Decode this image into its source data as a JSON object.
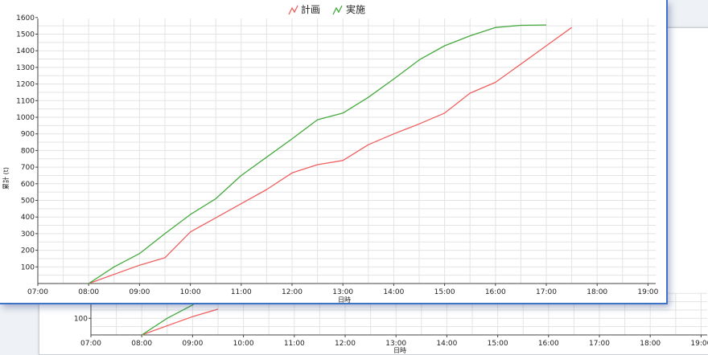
{
  "colors": {
    "plan": "#f06060",
    "actual": "#44aa3d",
    "grid": "#e3e3e3",
    "axis": "#444444",
    "window_border": "#3f72c9"
  },
  "chart_data": [
    {
      "type": "line",
      "legend": {
        "items": [
          "計画",
          "実施"
        ],
        "placement": "top-center"
      },
      "xlabel": "日時",
      "ylabel": "累計 (t)",
      "x_ticks": [
        "07:00",
        "08:00",
        "09:00",
        "10:00",
        "11:00",
        "12:00",
        "13:00",
        "14:00",
        "15:00",
        "16:00",
        "17:00",
        "18:00",
        "19:00"
      ],
      "y_ticks": [
        100,
        200,
        300,
        400,
        500,
        600,
        700,
        800,
        900,
        1000,
        1100,
        1200,
        1300,
        1400,
        1500,
        1600
      ],
      "xlim": [
        7,
        19.2
      ],
      "ylim": [
        0,
        1600
      ],
      "grid": true,
      "series": [
        {
          "name": "計画",
          "color": "#f06060",
          "x": [
            8.0,
            9.0,
            9.5,
            10.0,
            10.5,
            11.0,
            11.5,
            12.0,
            12.5,
            13.0,
            13.5,
            14.0,
            14.5,
            15.0,
            15.5,
            16.0,
            16.5,
            17.0,
            17.5
          ],
          "y": [
            0,
            110,
            155,
            310,
            395,
            480,
            565,
            665,
            715,
            740,
            835,
            900,
            960,
            1025,
            1145,
            1210,
            1320,
            1430,
            1540
          ]
        },
        {
          "name": "実施",
          "color": "#44aa3d",
          "x": [
            8.0,
            8.5,
            9.0,
            9.5,
            10.0,
            10.5,
            11.0,
            11.5,
            12.0,
            12.5,
            13.0,
            13.5,
            14.0,
            14.5,
            15.0,
            15.5,
            16.0,
            16.5,
            17.0
          ],
          "y": [
            0,
            100,
            180,
            300,
            415,
            510,
            650,
            760,
            870,
            985,
            1025,
            1120,
            1230,
            1345,
            1430,
            1490,
            1540,
            1553,
            1555
          ]
        }
      ]
    },
    {
      "type": "line",
      "xlabel": "日時",
      "x_ticks": [
        "07:00",
        "08:00",
        "09:00",
        "10:00",
        "11:00",
        "12:00",
        "13:00",
        "14:00",
        "15:00",
        "16:00",
        "17:00",
        "18:00",
        "19:00"
      ],
      "y_ticks": [
        100
      ],
      "xlim": [
        7,
        19.2
      ],
      "grid": true,
      "series": [
        {
          "name": "計画",
          "color": "#f06060",
          "x": [
            8.0,
            9.0,
            9.5
          ],
          "y": [
            0,
            110,
            155
          ]
        },
        {
          "name": "実施",
          "color": "#44aa3d",
          "x": [
            8.0,
            8.5,
            9.0,
            9.5
          ],
          "y": [
            0,
            100,
            180,
            300
          ]
        }
      ]
    }
  ]
}
